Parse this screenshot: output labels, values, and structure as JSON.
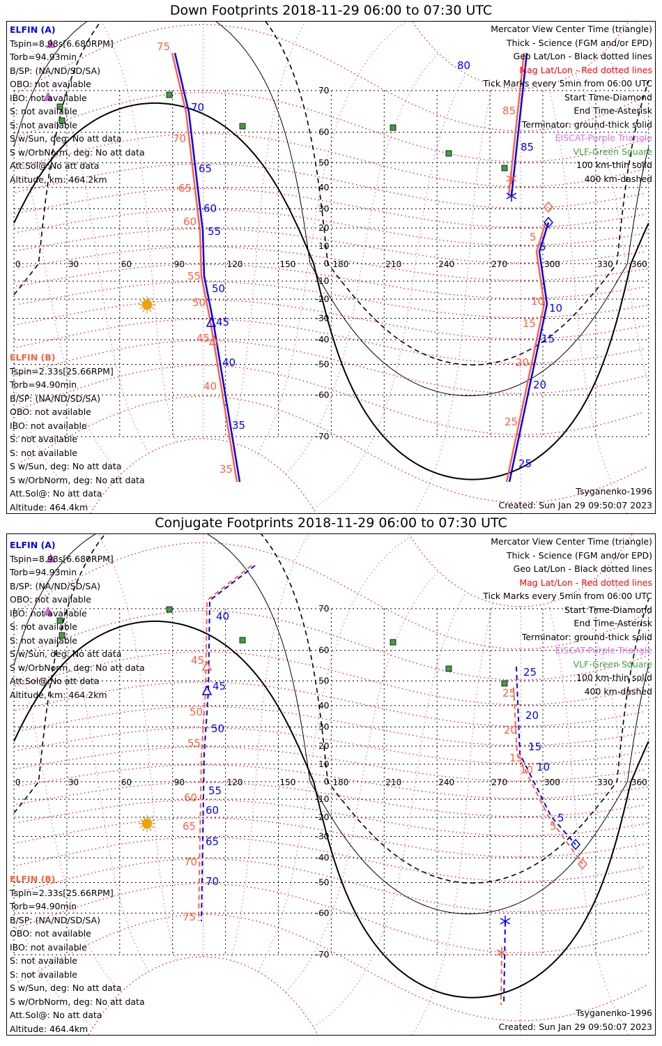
{
  "titles": [
    "Down Footprints 2018-11-29 06:00 to 07:30 UTC",
    "Conjugate Footprints 2018-11-29 06:00 to 07:30 UTC"
  ],
  "colors": {
    "elfin_a": "#0000ff",
    "elfin_b": "#ff6040",
    "mag_grid": "#ff0000",
    "eiscat": "#e070e0",
    "vlf": "#40a040"
  },
  "elfin_a": {
    "name": "ELFIN (A)",
    "lines": [
      "Tspin=8.98s[6.680RPM]",
      "Torb=94.93min",
      "B/SP: (NA/ND/SD/SA)",
      "OBO: not available",
      "IBO: not available",
      "S: not available",
      "S: not available",
      "S w/Sun, deg: No att data",
      "S w/OrbNorm, deg: No att data",
      "Att.Sol@:No att data",
      "Altitude, km: 464.2km"
    ]
  },
  "elfin_b": {
    "name": "ELFIN (B)",
    "lines": [
      "Tspin=2.33s[25.66RPM]",
      "Torb=94.90min",
      "B/SP: (NA/ND/SD/SA)",
      "OBO: not available",
      "IBO: not available",
      "S: not available",
      "S: not available",
      "S w/Sun, deg: No att data",
      "S w/OrbNorm, deg: No att data",
      "Att.Sol@: No att data",
      "Altitude: 464.4km"
    ]
  },
  "legend": [
    "Mercator View Center Time (triangle)",
    "Thick - Science (FGM and/or EPD)",
    "Geo Lat/Lon - Black dotted lines",
    "Mag Lat/Lon - Red dotted lines",
    "Tick Marks every 5min from 06:00 UTC",
    "Start Time-Diamond",
    "End Time-Asterisk",
    "Terminator: ground-thick solid",
    "EISCAT-Purple Triangle",
    "VLF-Green Square",
    "100 km-thin solid",
    "400 km-dashed"
  ],
  "model": "Tsyganenko-1996",
  "created": "Created: Sun Jan 29 09:50:07 2023",
  "axes": {
    "lon_ticks": [
      "0",
      "30",
      "60",
      "90",
      "120",
      "150",
      "180",
      "210",
      "240",
      "270",
      "300",
      "330",
      "360"
    ],
    "lat_ticks": [
      "70",
      "60",
      "50",
      "40",
      "30",
      "20",
      "10",
      "0",
      "-10",
      "-20",
      "-30",
      "-40",
      "-50",
      "-60",
      "-70"
    ]
  },
  "chart_data": [
    {
      "type": "map",
      "title": "Down Footprints 2018-11-29 06:00 to 07:30 UTC",
      "a_labels": [
        "70",
        "65",
        "60",
        "55",
        "50",
        "45",
        "40",
        "35",
        "80",
        "85",
        "5",
        "10",
        "15",
        "20",
        "25"
      ],
      "b_labels": [
        "75",
        "70",
        "65",
        "60",
        "55",
        "50",
        "45",
        "40",
        "35",
        "85",
        "5",
        "10",
        "15",
        "20",
        "25"
      ]
    },
    {
      "type": "map",
      "title": "Conjugate Footprints 2018-11-29 06:00 to 07:30 UTC",
      "a_labels": [
        "40",
        "45",
        "50",
        "55",
        "60",
        "65",
        "70",
        "25",
        "20",
        "15",
        "10",
        "5"
      ],
      "b_labels": [
        "45",
        "50",
        "55",
        "60",
        "65",
        "70",
        "75",
        "25",
        "20",
        "15",
        "10",
        "5"
      ]
    }
  ]
}
